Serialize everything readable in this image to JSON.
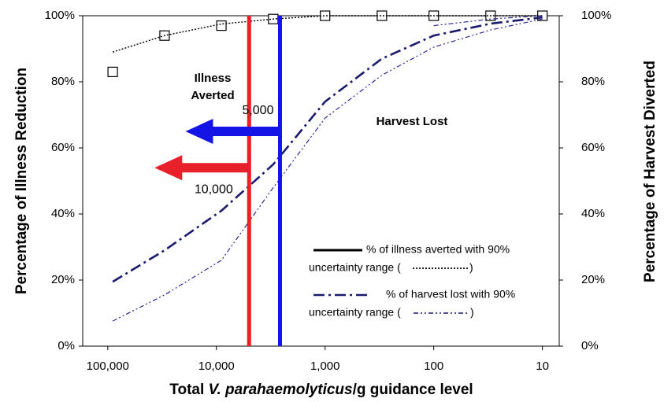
{
  "chart_data": {
    "type": "line",
    "x_label": [
      "Total ",
      "V. parahaemolyticus",
      "/g guidance level"
    ],
    "y_label": "Percentage of Illness Reduction",
    "y2_label": "Percentage of Harvest Diverted",
    "log_x": true,
    "x_reversed": true,
    "xlim": [
      170000,
      7
    ],
    "xticks": [
      {
        "value": 100000,
        "label": "100,000"
      },
      {
        "value": 10000,
        "label": "10,000"
      },
      {
        "value": 1000,
        "label": "1,000"
      },
      100,
      10
    ],
    "ylim": [
      0,
      100
    ],
    "yticks": [
      {
        "value": 0,
        "label": "0%"
      },
      {
        "value": 20,
        "label": "20%"
      },
      {
        "value": 40,
        "label": "40%"
      },
      {
        "value": 60,
        "label": "60%"
      },
      {
        "value": 80,
        "label": "80%"
      },
      {
        "value": 100,
        "label": "100%"
      }
    ],
    "y2lim": [
      0,
      100
    ],
    "y2ticks": [
      {
        "value": 0,
        "label": "0%"
      },
      {
        "value": 20,
        "label": "20%"
      },
      {
        "value": 40,
        "label": "40%"
      },
      {
        "value": 60,
        "label": "60%"
      },
      {
        "value": 80,
        "label": "80%"
      },
      {
        "value": 100,
        "label": "100%"
      }
    ],
    "x": [
      90000,
      30000,
      9000,
      3000,
      1000,
      300,
      100,
      30,
      10
    ],
    "series": [
      {
        "color": "#000000",
        "style": "markers",
        "values": [
          83,
          94,
          97,
          99,
          100,
          100,
          100,
          100,
          100
        ]
      },
      {
        "color": "#000000",
        "style": "dotted",
        "values": [
          89,
          94,
          97.5,
          99,
          100,
          100,
          100,
          100,
          100
        ]
      },
      {
        "color": "#1a1a6e",
        "style": "dashdot",
        "axis": "y2",
        "values": [
          19.5,
          29,
          41,
          55,
          74,
          87,
          94,
          97.6,
          99.5
        ]
      },
      {
        "color": "#2a2a90",
        "style": "dashdotdot",
        "axis": "y2",
        "values": [
          7.6,
          15.5,
          26,
          48,
          69,
          82,
          90.5,
          95.7,
          99
        ]
      },
      {
        "color": "#2a2a90",
        "style": "dashdotdot",
        "axis": "y2",
        "values": [
          null,
          null,
          null,
          null,
          null,
          null,
          97,
          99,
          100
        ]
      }
    ],
    "reference_lines": [
      {
        "x": 5000,
        "color": "#e8202a",
        "arrow_y": 54,
        "label": "10,000"
      },
      {
        "x": 2600,
        "color": "#1414e6",
        "arrow_y": 65,
        "label": "5,000"
      }
    ],
    "annotations": [
      "Illness",
      "Averted",
      "Harvest Lost"
    ],
    "legend": [
      {
        "label": "% of illness averted with 90%",
        "sub": "uncertainty range (",
        "end": ")",
        "line_style": "solid",
        "range_style": "dotted",
        "color": "#000000"
      },
      {
        "label": "% of harvest lost with 90%",
        "sub": "uncertainty range (",
        "end": ")",
        "line_style": "dashdot",
        "range_style": "dashdotdot",
        "color": "#1a1a6e"
      }
    ]
  }
}
